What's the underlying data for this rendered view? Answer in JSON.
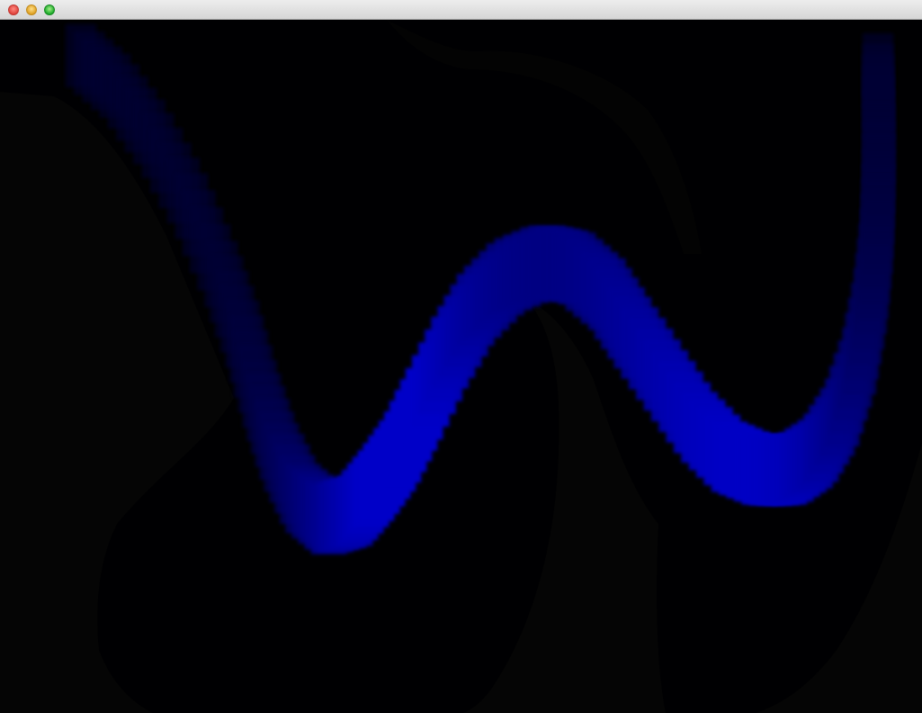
{
  "window": {
    "title": ""
  },
  "scene": {
    "background_color": "#000002",
    "shadow_color": "#050505",
    "trail_color": "#0000c8",
    "trail_color_faded": "#00002a"
  }
}
